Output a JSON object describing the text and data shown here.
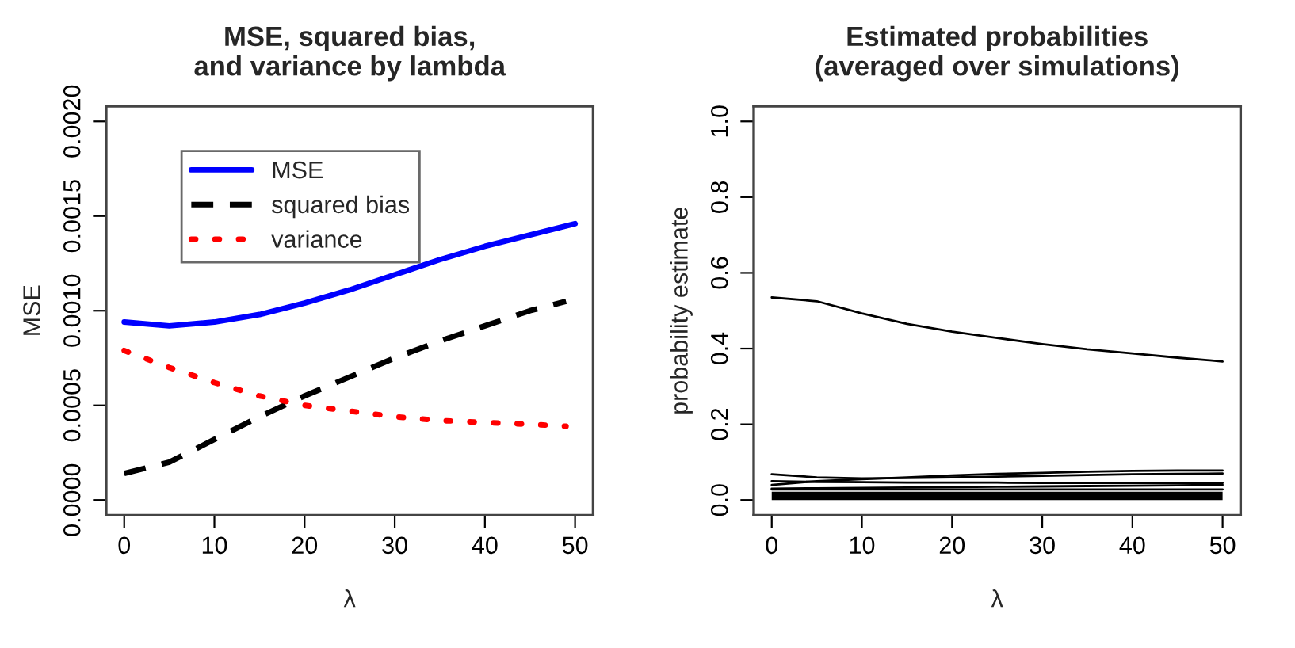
{
  "chart_data": [
    {
      "type": "line",
      "title": "MSE, squared bias,\nand variance by lambda",
      "xlabel": "λ",
      "ylabel": "MSE",
      "x": [
        0,
        5,
        10,
        15,
        20,
        25,
        30,
        35,
        40,
        45,
        50
      ],
      "series": [
        {
          "name": "MSE",
          "color": "#0000ff",
          "line_style": "solid",
          "values": [
            0.00094,
            0.00092,
            0.00094,
            0.00098,
            0.00104,
            0.00111,
            0.00119,
            0.00127,
            0.00134,
            0.0014,
            0.00146
          ]
        },
        {
          "name": "squared bias",
          "color": "#000000",
          "line_style": "dashed",
          "x": [
            0,
            5,
            10,
            15,
            20,
            25,
            30,
            35,
            40,
            45,
            49
          ],
          "values": [
            0.00014,
            0.0002,
            0.00032,
            0.00044,
            0.00055,
            0.00065,
            0.00075,
            0.00084,
            0.00092,
            0.001,
            0.00105
          ]
        },
        {
          "name": "variance",
          "color": "#ff0000",
          "line_style": "dotted",
          "x": [
            0,
            5,
            10,
            15,
            20,
            25,
            30,
            35,
            40,
            45,
            49
          ],
          "values": [
            0.00079,
            0.0007,
            0.00062,
            0.00055,
            0.0005,
            0.00047,
            0.00044,
            0.00042,
            0.00041,
            0.0004,
            0.00039
          ]
        }
      ],
      "xlim": [
        -2,
        52
      ],
      "xticks": [
        0,
        10,
        20,
        30,
        40,
        50
      ],
      "ylim": [
        -8e-05,
        0.00208
      ],
      "yticks": [
        {
          "value": 0,
          "label": "0.0000"
        },
        {
          "value": 0.0005,
          "label": "0.0005"
        },
        {
          "value": 0.001,
          "label": "0.0010"
        },
        {
          "value": 0.0015,
          "label": "0.0015"
        },
        {
          "value": 0.002,
          "label": "0.0020"
        }
      ],
      "legend": "top left",
      "grid": false
    },
    {
      "type": "line",
      "title": "Estimated probabilities\n(averaged over simulations)",
      "xlabel": "λ",
      "ylabel": "probability estimate",
      "x": [
        0,
        5,
        10,
        15,
        20,
        25,
        30,
        35,
        40,
        45,
        50
      ],
      "series": [
        {
          "color": "#000000",
          "values": [
            0.535,
            0.525,
            0.493,
            0.465,
            0.445,
            0.428,
            0.412,
            0.398,
            0.387,
            0.376,
            0.366
          ]
        },
        {
          "color": "#000000",
          "values": [
            0.068,
            0.06,
            0.057,
            0.058,
            0.06,
            0.062,
            0.064,
            0.066,
            0.068,
            0.069,
            0.07
          ]
        },
        {
          "color": "#000000",
          "values": [
            0.04,
            0.05,
            0.055,
            0.06,
            0.065,
            0.069,
            0.072,
            0.075,
            0.077,
            0.078,
            0.078
          ]
        },
        {
          "color": "#000000",
          "values": [
            0.05,
            0.048,
            0.047,
            0.046,
            0.046,
            0.046,
            0.045,
            0.045,
            0.045,
            0.045,
            0.045
          ]
        },
        {
          "color": "#000000",
          "values": [
            0.03,
            0.031,
            0.032,
            0.033,
            0.034,
            0.035,
            0.036,
            0.037,
            0.038,
            0.039,
            0.04
          ]
        },
        {
          "color": "#000000",
          "values": [
            0.028,
            0.028,
            0.028,
            0.028,
            0.028,
            0.028,
            0.028,
            0.028,
            0.028,
            0.028,
            0.028
          ],
          "lower": [
            0,
            0,
            0,
            0,
            0,
            0,
            0,
            0,
            0,
            0,
            0
          ],
          "upper": [
            0.022,
            0.022,
            0.022,
            0.022,
            0.022,
            0.022,
            0.022,
            0.022,
            0.022,
            0.022,
            0.022
          ]
        }
      ],
      "xlim": [
        -2,
        52
      ],
      "xticks": [
        0,
        10,
        20,
        30,
        40,
        50
      ],
      "ylim": [
        -0.04,
        1.04
      ],
      "yticks": [
        {
          "value": 0,
          "label": "0.0"
        },
        {
          "value": 0.2,
          "label": "0.2"
        },
        {
          "value": 0.4,
          "label": "0.4"
        },
        {
          "value": 0.6,
          "label": "0.6"
        },
        {
          "value": 0.8,
          "label": "0.8"
        },
        {
          "value": 1.0,
          "label": "1.0"
        }
      ],
      "grid": false
    }
  ]
}
